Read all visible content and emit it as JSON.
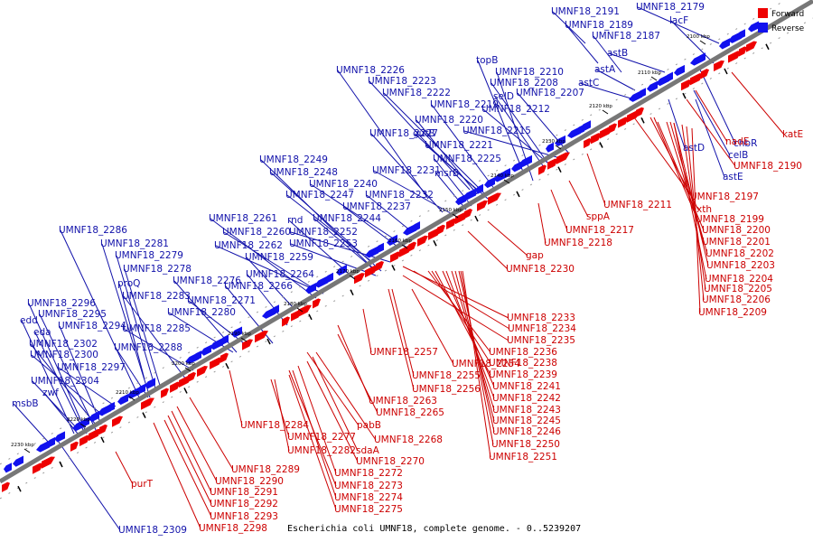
{
  "caption": "Escherichia coli UMNF18, complete genome. - 0..5239207",
  "legend": [
    {
      "label": "Forward",
      "color": "#ee0000"
    },
    {
      "label": "Reverse",
      "color": "#1111ee"
    }
  ],
  "colors": {
    "forward": "#ee0000",
    "reverse": "#1111ee",
    "backbone": "#777777",
    "leader_forward": "#cc0000",
    "leader_reverse": "#1111aa"
  },
  "kbp_ticks": [
    {
      "label": "2230 kbp"
    },
    {
      "label": "2220 kbp"
    },
    {
      "label": "2210 kbp"
    },
    {
      "label": "2200 kbp"
    },
    {
      "label": "2190 kbp"
    },
    {
      "label": "2180 kbp"
    },
    {
      "label": "2170 kbp"
    },
    {
      "label": "2160 kbp"
    },
    {
      "label": "2150 kbp"
    },
    {
      "label": "2140 kbp"
    },
    {
      "label": "2130 kbp"
    },
    {
      "label": "2120 kbp"
    },
    {
      "label": "2110 kbp"
    },
    {
      "label": "2100 kbp"
    }
  ],
  "reverse_labels": [
    {
      "text": "UMNF18_2191"
    },
    {
      "text": "UMNF18_2179"
    },
    {
      "text": "UMNF18_2189"
    },
    {
      "text": "lacF"
    },
    {
      "text": "UMNF18_2187"
    },
    {
      "text": "astB"
    },
    {
      "text": "topB"
    },
    {
      "text": "astA"
    },
    {
      "text": "UMNF18_2226"
    },
    {
      "text": "UMNF18_2210"
    },
    {
      "text": "UMNF18_2223"
    },
    {
      "text": "UMNF18_2208"
    },
    {
      "text": "astC"
    },
    {
      "text": "UMNF18_2222"
    },
    {
      "text": "selD"
    },
    {
      "text": "UMNF18_2207"
    },
    {
      "text": "UMNF18_2219"
    },
    {
      "text": "UMNF18_2212"
    },
    {
      "text": "UMNF18_2220"
    },
    {
      "text": "UMNF18_2227"
    },
    {
      "text": "gutB"
    },
    {
      "text": "UMNF18_2215"
    },
    {
      "text": "UMNF18_2221"
    },
    {
      "text": "UMNF18_2249"
    },
    {
      "text": "UMNF18_2225"
    },
    {
      "text": "UMNF18_2248"
    },
    {
      "text": "UMNF18_2231"
    },
    {
      "text": "msrB"
    },
    {
      "text": "UMNF18_2240"
    },
    {
      "text": "UMNF18_2247"
    },
    {
      "text": "UMNF18_2232"
    },
    {
      "text": "UMNF18_2237"
    },
    {
      "text": "UMNF18_2261"
    },
    {
      "text": "rnd"
    },
    {
      "text": "UMNF18_2244"
    },
    {
      "text": "UMNF18_2286"
    },
    {
      "text": "UMNF18_2260"
    },
    {
      "text": "UMNF18_2252"
    },
    {
      "text": "UMNF18_2281"
    },
    {
      "text": "UMNF18_2262"
    },
    {
      "text": "UMNF18_2253"
    },
    {
      "text": "UMNF18_2279"
    },
    {
      "text": "UMNF18_2259"
    },
    {
      "text": "UMNF18_2278"
    },
    {
      "text": "UMNF18_2264"
    },
    {
      "text": "proQ"
    },
    {
      "text": "UMNF18_2276"
    },
    {
      "text": "UMNF18_2266"
    },
    {
      "text": "UMNF18_2283"
    },
    {
      "text": "UMNF18_2271"
    },
    {
      "text": "UMNF18_2296"
    },
    {
      "text": "UMNF18_2280"
    },
    {
      "text": "UMNF18_2295"
    },
    {
      "text": "edd"
    },
    {
      "text": "UMNF18_2294"
    },
    {
      "text": "UMNF18_2285"
    },
    {
      "text": "eda"
    },
    {
      "text": "UMNF18_2302"
    },
    {
      "text": "UMNF18_2288"
    },
    {
      "text": "UMNF18_2300"
    },
    {
      "text": "UMNF18_2297"
    },
    {
      "text": "UMNF18_2304"
    },
    {
      "text": "zwf"
    },
    {
      "text": "msbB"
    },
    {
      "text": "astD"
    },
    {
      "text": "chbR"
    },
    {
      "text": "celB"
    },
    {
      "text": "astE"
    },
    {
      "text": "UMNF18_2309"
    }
  ],
  "forward_labels": [
    {
      "text": "katE"
    },
    {
      "text": "nadE"
    },
    {
      "text": "UMNF18_2190"
    },
    {
      "text": "UMNF18_2197"
    },
    {
      "text": "UMNF18_2211"
    },
    {
      "text": "xth"
    },
    {
      "text": "sppA"
    },
    {
      "text": "UMNF18_2199"
    },
    {
      "text": "UMNF18_2217"
    },
    {
      "text": "UMNF18_2200"
    },
    {
      "text": "UMNF18_2218"
    },
    {
      "text": "UMNF18_2201"
    },
    {
      "text": "gap"
    },
    {
      "text": "UMNF18_2202"
    },
    {
      "text": "UMNF18_2230"
    },
    {
      "text": "UMNF18_2203"
    },
    {
      "text": "UMNF18_2204"
    },
    {
      "text": "UMNF18_2205"
    },
    {
      "text": "UMNF18_2206"
    },
    {
      "text": "UMNF18_2209"
    },
    {
      "text": "UMNF18_2233"
    },
    {
      "text": "UMNF18_2234"
    },
    {
      "text": "UMNF18_2235"
    },
    {
      "text": "UMNF18_2257"
    },
    {
      "text": "UMNF18_2236"
    },
    {
      "text": "UMNF18_2254"
    },
    {
      "text": "UMNF18_2238"
    },
    {
      "text": "UMNF18_2255"
    },
    {
      "text": "UMNF18_2239"
    },
    {
      "text": "UMNF18_2241"
    },
    {
      "text": "UMNF18_2256"
    },
    {
      "text": "UMNF18_2242"
    },
    {
      "text": "UMNF18_2263"
    },
    {
      "text": "UMNF18_2243"
    },
    {
      "text": "UMNF18_2265"
    },
    {
      "text": "UMNF18_2245"
    },
    {
      "text": "UMNF18_2284"
    },
    {
      "text": "pabB"
    },
    {
      "text": "UMNF18_2246"
    },
    {
      "text": "UMNF18_2277"
    },
    {
      "text": "UMNF18_2268"
    },
    {
      "text": "UMNF18_2250"
    },
    {
      "text": "UMNF18_2282"
    },
    {
      "text": "sdaA"
    },
    {
      "text": "UMNF18_2251"
    },
    {
      "text": "UMNF18_2270"
    },
    {
      "text": "UMNF18_2289"
    },
    {
      "text": "UMNF18_2272"
    },
    {
      "text": "UMNF18_2290"
    },
    {
      "text": "purT"
    },
    {
      "text": "UMNF18_2273"
    },
    {
      "text": "UMNF18_2291"
    },
    {
      "text": "UMNF18_2274"
    },
    {
      "text": "UMNF18_2292"
    },
    {
      "text": "UMNF18_2275"
    },
    {
      "text": "UMNF18_2293"
    },
    {
      "text": "UMNF18_2298"
    }
  ]
}
